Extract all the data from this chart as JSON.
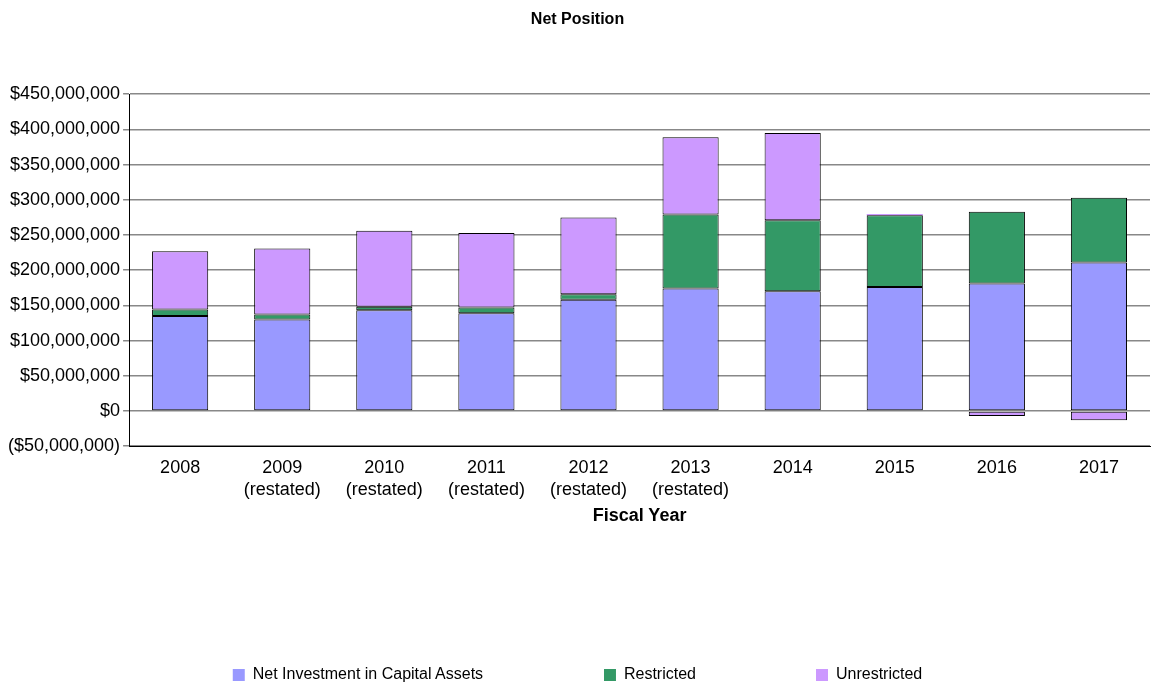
{
  "chart_data": {
    "type": "bar",
    "title": "Net Position",
    "xlabel": "Fiscal Year",
    "stacked": true,
    "grid": "y",
    "legend": "bottom",
    "categories": [
      "2008",
      "2009\n(restated)",
      "2010\n(restated)",
      "2011\n(restated)",
      "2012\n(restated)",
      "2013\n(restated)",
      "2014",
      "2015",
      "2016",
      "2017"
    ],
    "series": [
      {
        "name": "Net Investment in Capital Assets",
        "color": "#9999ff",
        "values": [
          135000000,
          130000000,
          143000000,
          139000000,
          158000000,
          174000000,
          170000000,
          176000000,
          181000000,
          211000000
        ]
      },
      {
        "name": "Restricted",
        "color": "#339966",
        "values": [
          9000000,
          7000000,
          5000000,
          8000000,
          8000000,
          105000000,
          101000000,
          102000000,
          102000000,
          92000000
        ]
      },
      {
        "name": "Unrestricted",
        "color": "#cc99ff",
        "values": [
          83000000,
          94000000,
          108000000,
          106000000,
          109000000,
          110000000,
          124000000,
          2000000,
          -7000000,
          -13000000
        ]
      }
    ],
    "ylim": [
      -50000000,
      450000000
    ],
    "yticks": [
      {
        "value": -50000000,
        "label": "($50,000,000)"
      },
      {
        "value": 0,
        "label": "$0"
      },
      {
        "value": 50000000,
        "label": "$50,000,000"
      },
      {
        "value": 100000000,
        "label": "$100,000,000"
      },
      {
        "value": 150000000,
        "label": "$150,000,000"
      },
      {
        "value": 200000000,
        "label": "$200,000,000"
      },
      {
        "value": 250000000,
        "label": "$250,000,000"
      },
      {
        "value": 300000000,
        "label": "$300,000,000"
      },
      {
        "value": 350000000,
        "label": "$350,000,000"
      },
      {
        "value": 400000000,
        "label": "$400,000,000"
      },
      {
        "value": 450000000,
        "label": "$450,000,000"
      }
    ]
  }
}
